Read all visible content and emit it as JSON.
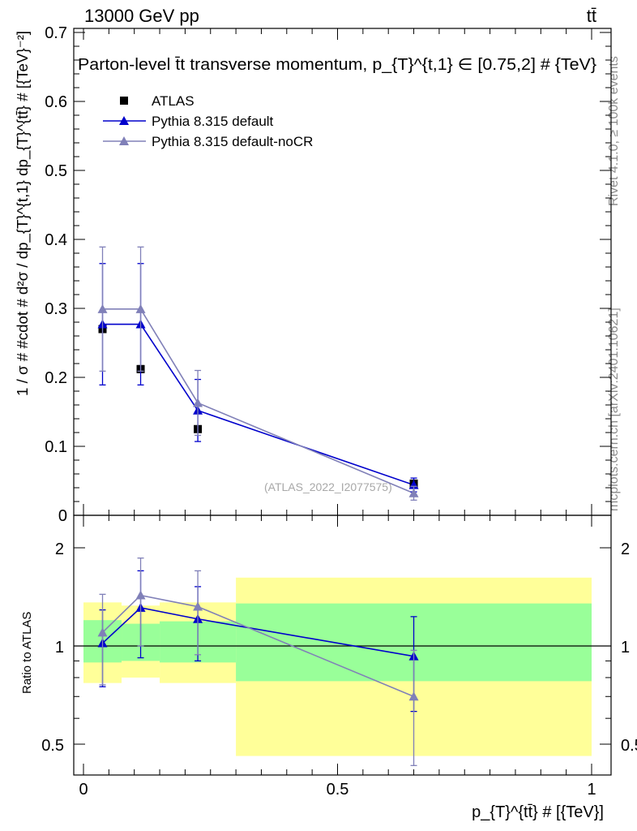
{
  "header": {
    "energy_label": "13000 GeV pp",
    "process_label": "tt̄"
  },
  "side_labels": {
    "rivet": "Rivet 4.1.0, ≥ 100k events",
    "mcplots": "mcplots.cern.ch [arXiv:2401.10621]"
  },
  "chart_data": [
    {
      "type": "line",
      "panel": "main",
      "title": "Parton-level t̄t transverse momentum, p_{T}^{t,1} ∈ [0.75,2] # {TeV}",
      "ylabel": "1 / σ # #cdot # d²σ / dp_{T}^{t,1} dp_{T}^{tt̄} # [{TeV}⁻²]",
      "xlabel": "p_{T}^{tt̄} # [{TeV}]",
      "analysis_label": "(ATLAS_2022_I2077575)",
      "xlim": [
        0,
        1
      ],
      "ylim": [
        0,
        0.7
      ],
      "yticks": [
        0,
        0.1,
        0.2,
        0.3,
        0.4,
        0.5,
        0.6,
        0.7
      ],
      "ytick_labels": [
        "0",
        "0.1",
        "0.2",
        "0.3",
        "0.4",
        "0.5",
        "0.6",
        "0.7"
      ],
      "legend": {
        "placement": "top-left",
        "entries": [
          "ATLAS",
          "Pythia 8.315 default",
          "Pythia 8.315 default-noCR"
        ]
      },
      "series": [
        {
          "name": "ATLAS",
          "style": "square-markers",
          "color": "#000000",
          "x": [
            0.0375,
            0.1125,
            0.225,
            0.65
          ],
          "y": [
            0.27,
            0.212,
            0.125,
            0.046
          ],
          "yerr": [
            0.005,
            0.005,
            0.004,
            0.003
          ]
        },
        {
          "name": "Pythia 8.315 default",
          "style": "line-triangles",
          "color": "#0000cc",
          "x": [
            0.0375,
            0.1125,
            0.225,
            0.65
          ],
          "y": [
            0.277,
            0.277,
            0.152,
            0.044
          ],
          "yerr": [
            0.088,
            0.088,
            0.045,
            0.01
          ]
        },
        {
          "name": "Pythia 8.315 default-noCR",
          "style": "line-triangles",
          "color": "#8080b8",
          "x": [
            0.0375,
            0.1125,
            0.225,
            0.65
          ],
          "y": [
            0.299,
            0.299,
            0.163,
            0.032
          ],
          "yerr": [
            0.09,
            0.09,
            0.047,
            0.01
          ]
        }
      ],
      "step_edges": [
        0,
        0.075,
        0.15,
        0.3,
        1.0
      ]
    },
    {
      "type": "line",
      "panel": "ratio",
      "ylabel": "Ratio to ATLAS",
      "xlabel": "p_{T}^{tt̄} # [{TeV}]",
      "xlim": [
        0,
        1
      ],
      "ylim": [
        0.4,
        2.3
      ],
      "yticks": [
        0.5,
        1,
        2
      ],
      "ytick_labels": [
        "0.5",
        "1",
        "2"
      ],
      "xticks": [
        0,
        0.5,
        1
      ],
      "xtick_labels": [
        "0",
        "0.5",
        "1"
      ],
      "bands": {
        "edges": [
          0,
          0.075,
          0.15,
          0.3,
          1.0
        ],
        "stat_lo": [
          0.89,
          0.9,
          0.89,
          0.78
        ],
        "stat_hi": [
          1.2,
          1.17,
          1.19,
          1.35
        ],
        "total_lo": [
          0.77,
          0.8,
          0.77,
          0.46
        ],
        "total_hi": [
          1.36,
          1.33,
          1.36,
          1.62
        ],
        "stat_color": "#99ff99",
        "total_color": "#ffff99"
      },
      "series": [
        {
          "name": "Pythia 8.315 default",
          "color": "#0000cc",
          "x": [
            0.0375,
            0.1125,
            0.225,
            0.65
          ],
          "y": [
            1.02,
            1.31,
            1.21,
            0.93
          ],
          "yerr": [
            0.27,
            0.39,
            0.31,
            0.3
          ]
        },
        {
          "name": "Pythia 8.315 default-noCR",
          "color": "#8080b8",
          "x": [
            0.0375,
            0.1125,
            0.225,
            0.65
          ],
          "y": [
            1.1,
            1.43,
            1.32,
            0.7
          ],
          "yerr": [
            0.34,
            0.43,
            0.38,
            0.27
          ]
        }
      ]
    }
  ]
}
